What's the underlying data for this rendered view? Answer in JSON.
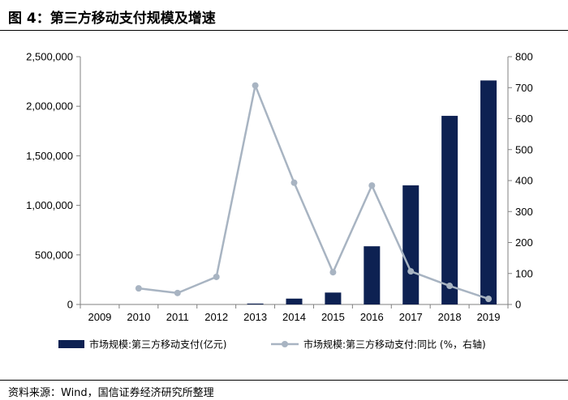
{
  "figure": {
    "title": "图 4：第三方移动支付规模及增速",
    "source": "资料来源：Wind，国信证券经济研究所整理"
  },
  "chart_data": {
    "type": "bar",
    "categories": [
      "2009",
      "2010",
      "2011",
      "2012",
      "2013",
      "2014",
      "2015",
      "2016",
      "2017",
      "2018",
      "2019"
    ],
    "series": [
      {
        "name": "市场规模:第三方移动支付(亿元)",
        "type": "bar",
        "axis": "left",
        "color": "#0d2152",
        "values": [
          0,
          0,
          0,
          0,
          9000,
          59000,
          120000,
          587000,
          1202000,
          1903000,
          2260000
        ]
      },
      {
        "name": "市场规模:第三方移动支付:同比 (%，右轴)",
        "type": "line",
        "axis": "right",
        "color": "#a8b4c2",
        "values": [
          null,
          52,
          37,
          89,
          707,
          393,
          104,
          384,
          107,
          60,
          18
        ]
      }
    ],
    "y_left": {
      "ylim": [
        0,
        2500000
      ],
      "ticks": [
        "0",
        "500,000",
        "1,000,000",
        "1,500,000",
        "2,000,000",
        "2,500,000"
      ],
      "tick_values": [
        0,
        500000,
        1000000,
        1500000,
        2000000,
        2500000
      ]
    },
    "y_right": {
      "ylim": [
        0,
        800
      ],
      "ticks": [
        "0",
        "100",
        "200",
        "300",
        "400",
        "500",
        "600",
        "700",
        "800"
      ],
      "tick_values": [
        0,
        100,
        200,
        300,
        400,
        500,
        600,
        700,
        800
      ]
    },
    "grid": false,
    "legend": "bottom"
  }
}
